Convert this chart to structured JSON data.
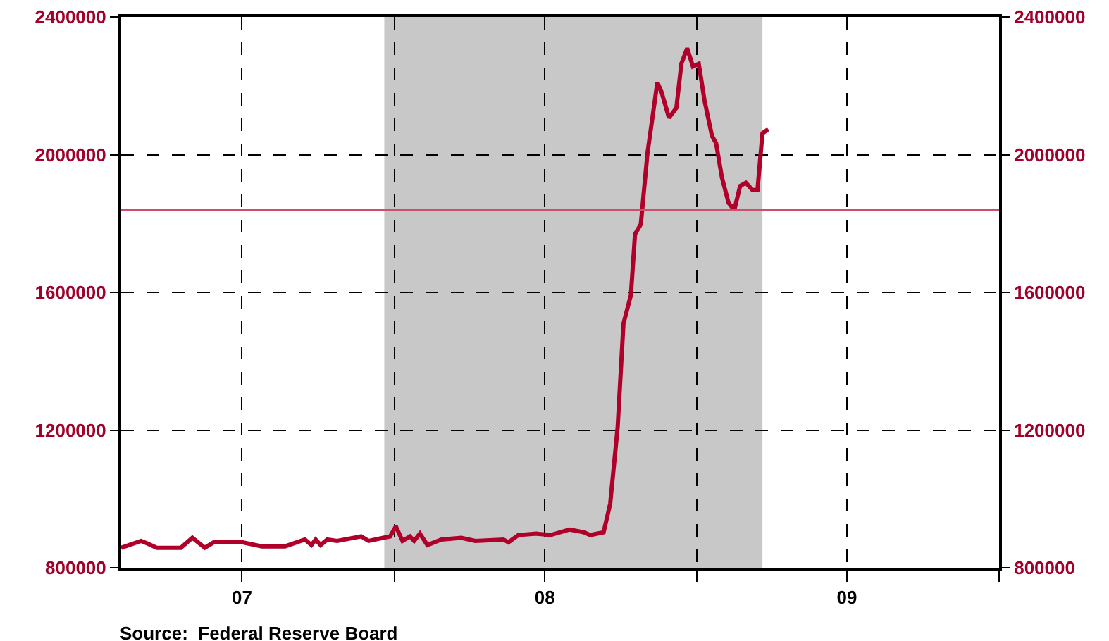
{
  "chart_data": {
    "type": "line",
    "annotations": [
      "Source:  Federal Reserve Board"
    ],
    "x": [
      "2007-02-05",
      "2007-03-01",
      "2007-03-09",
      "2007-03-20",
      "2007-04-18",
      "2007-05-02",
      "2007-05-17",
      "2007-05-28",
      "2007-07-01",
      "2007-07-25",
      "2007-08-22",
      "2007-09-15",
      "2007-09-23",
      "2007-09-28",
      "2007-10-04",
      "2007-10-12",
      "2007-10-24",
      "2007-11-22",
      "2007-12-01",
      "2007-12-27",
      "2008-01-03",
      "2008-01-11",
      "2008-01-20",
      "2008-01-25",
      "2008-02-01",
      "2008-02-10",
      "2008-02-27",
      "2008-03-22",
      "2008-04-08",
      "2008-05-12",
      "2008-05-18",
      "2008-05-30",
      "2008-06-21",
      "2008-07-08",
      "2008-07-31",
      "2008-08-17",
      "2008-08-25",
      "2008-09-10",
      "2008-09-18",
      "2008-09-27",
      "2008-10-04",
      "2008-10-13",
      "2008-10-18",
      "2008-10-25",
      "2008-11-02",
      "2008-11-14",
      "2008-11-19",
      "2008-11-28",
      "2008-12-07",
      "2008-12-13",
      "2008-12-20",
      "2008-12-27",
      "2009-01-03",
      "2009-01-10",
      "2009-01-19",
      "2009-01-24",
      "2009-01-31",
      "2009-02-08",
      "2009-02-15",
      "2009-02-22",
      "2009-03-01",
      "2009-03-09",
      "2009-03-15",
      "2009-03-21",
      "2009-03-28"
    ],
    "series": [
      {
        "color": "#b0002a",
        "values": [
          858000,
          878000,
          870000,
          858000,
          858000,
          887000,
          858000,
          874000,
          874000,
          862000,
          862000,
          882000,
          866000,
          882000,
          866000,
          882000,
          878000,
          891000,
          878000,
          891000,
          920000,
          878000,
          891000,
          878000,
          899000,
          866000,
          882000,
          887000,
          878000,
          882000,
          874000,
          895000,
          899000,
          895000,
          911000,
          903000,
          895000,
          903000,
          986000,
          1208000,
          1509000,
          1592000,
          1769000,
          1798000,
          2004000,
          2210000,
          2182000,
          2107000,
          2136000,
          2264000,
          2309000,
          2256000,
          2264000,
          2157000,
          2054000,
          2033000,
          1934000,
          1860000,
          1839000,
          1909000,
          1918000,
          1897000,
          1897000,
          2062000,
          2074000
        ]
      }
    ],
    "xlim": [
      "2007-02-05",
      "2010-01-01"
    ],
    "xticks": [
      {
        "value": "2007-07-01",
        "label": "07"
      },
      {
        "value": "2008-01-01",
        "label": null
      },
      {
        "value": "2008-07-01",
        "label": "08"
      },
      {
        "value": "2009-01-01",
        "label": null
      },
      {
        "value": "2009-07-01",
        "label": "09"
      },
      {
        "value": "2010-01-01",
        "label": null
      }
    ],
    "ylim": [
      800000,
      2400000
    ],
    "yticks": [
      800000,
      1200000,
      1600000,
      2000000,
      2400000
    ],
    "y2lim": [
      800000,
      2400000
    ],
    "y2ticks": [
      800000,
      1200000,
      1600000,
      2000000,
      2400000
    ],
    "ref_lines": [
      {
        "axis": "y",
        "value": 1840000,
        "color": "#c8506a"
      }
    ],
    "bands": [
      {
        "axis": "x",
        "from": "2007-12-20",
        "to": "2009-03-21",
        "color": "#c8c8c8"
      }
    ],
    "grid": true,
    "marker": "none",
    "line_style": "solid"
  }
}
